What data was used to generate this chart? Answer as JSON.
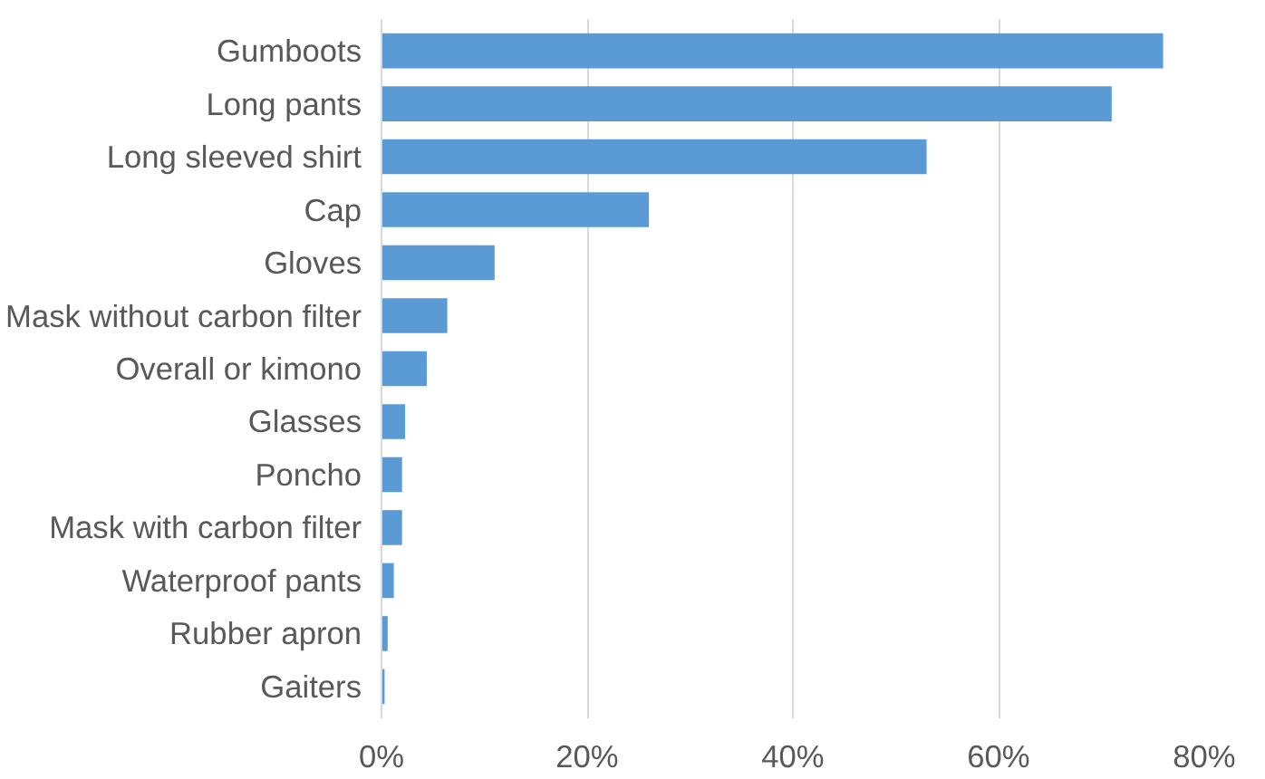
{
  "chart_data": {
    "type": "bar",
    "orientation": "horizontal",
    "categories": [
      "Gumboots",
      "Long pants",
      "Long sleeved shirt",
      "Cap",
      "Gloves",
      "Mask without carbon filter",
      "Overall or kimono",
      "Glasses",
      "Poncho",
      "Mask with carbon filter",
      "Waterproof pants",
      "Rubber apron",
      "Gaiters"
    ],
    "values": [
      76,
      71,
      53,
      26,
      11,
      6.4,
      4.4,
      2.3,
      2,
      2,
      1.2,
      0.6,
      0.3
    ],
    "color": "#5b9bd5",
    "xlim": [
      0,
      80
    ],
    "xticks": [
      {
        "value": 0,
        "label": "0%"
      },
      {
        "value": 20,
        "label": "20%"
      },
      {
        "value": 40,
        "label": "40%"
      },
      {
        "value": 60,
        "label": "60%"
      },
      {
        "value": 80,
        "label": "80%"
      }
    ],
    "grid": "x"
  }
}
